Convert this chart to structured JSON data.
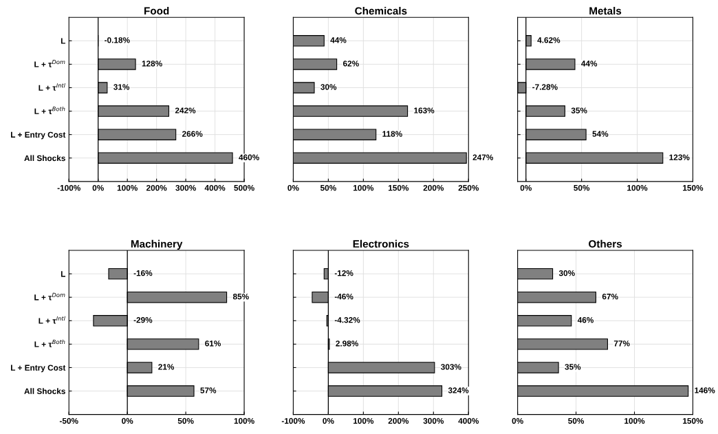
{
  "chart_data": [
    {
      "type": "bar",
      "orientation": "horizontal",
      "title": "Food",
      "categories": [
        "L",
        "L + τ$^{Dom}$",
        "L + τ$^{Intl}$",
        "L + τ$^{Both}$",
        "L + Entry Cost",
        "All Shocks"
      ],
      "values": [
        -0.18,
        128,
        31,
        242,
        266,
        460
      ],
      "value_labels": [
        "-0.18%",
        "128%",
        "31%",
        "242%",
        "266%",
        "460%"
      ],
      "color": "#808080",
      "xlim": [
        -100,
        500
      ],
      "xticks": [
        {
          "value": -100,
          "label": "-100%"
        },
        {
          "value": 0,
          "label": "0%"
        },
        {
          "value": 100,
          "label": "100%"
        },
        {
          "value": 200,
          "label": "200%"
        },
        {
          "value": 300,
          "label": "300%"
        },
        {
          "value": 400,
          "label": "400%"
        },
        {
          "value": 500,
          "label": "500%"
        }
      ],
      "grid": true,
      "ref_lines": [
        {
          "axis": "x",
          "value": 0,
          "color": "#000000"
        }
      ]
    },
    {
      "type": "bar",
      "orientation": "horizontal",
      "title": "Chemicals",
      "categories": [
        null,
        null,
        null,
        null,
        null,
        null
      ],
      "values": [
        44,
        62,
        30,
        163,
        118,
        247
      ],
      "value_labels": [
        "44%",
        "62%",
        "30%",
        "163%",
        "118%",
        "247%"
      ],
      "color": "#808080",
      "xlim": [
        0,
        250
      ],
      "xticks": [
        {
          "value": 0,
          "label": "0%"
        },
        {
          "value": 50,
          "label": "50%"
        },
        {
          "value": 100,
          "label": "100%"
        },
        {
          "value": 150,
          "label": "150%"
        },
        {
          "value": 200,
          "label": "200%"
        },
        {
          "value": 250,
          "label": "250%"
        }
      ],
      "grid": true,
      "tick_labels": "x"
    },
    {
      "type": "bar",
      "orientation": "horizontal",
      "title": "Metals",
      "categories": [
        null,
        null,
        null,
        null,
        null,
        null
      ],
      "values": [
        4.62,
        44,
        -7.28,
        35,
        54,
        123
      ],
      "value_labels": [
        "4.62%",
        "44%",
        "-7.28%",
        "35%",
        "54%",
        "123%"
      ],
      "color": "#808080",
      "xlim": [
        -7.5,
        150
      ],
      "xticks": [
        {
          "value": 0,
          "label": "0%"
        },
        {
          "value": 50,
          "label": "50%"
        },
        {
          "value": 100,
          "label": "100%"
        },
        {
          "value": 150,
          "label": "150%"
        }
      ],
      "grid": true,
      "tick_labels": "x",
      "ref_lines": [
        {
          "axis": "x",
          "value": 0,
          "color": "#000000"
        }
      ]
    },
    {
      "type": "bar",
      "orientation": "horizontal",
      "title": "Machinery",
      "categories": [
        "L",
        "L + τ$^{Dom}$",
        "L + τ$^{Intl}$",
        "L + τ$^{Both}$",
        "L + Entry Cost",
        "All Shocks"
      ],
      "values": [
        -16,
        85,
        -29,
        61,
        21,
        57
      ],
      "value_labels": [
        "-16%",
        "85%",
        "-29%",
        "61%",
        "21%",
        "57%"
      ],
      "color": "#808080",
      "xlim": [
        -50,
        100
      ],
      "xticks": [
        {
          "value": -50,
          "label": "-50%"
        },
        {
          "value": 0,
          "label": "0%"
        },
        {
          "value": 50,
          "label": "50%"
        },
        {
          "value": 100,
          "label": "100%"
        }
      ],
      "grid": true,
      "ref_lines": [
        {
          "axis": "x",
          "value": 0,
          "color": "#000000"
        }
      ]
    },
    {
      "type": "bar",
      "orientation": "horizontal",
      "title": "Electronics",
      "categories": [
        null,
        null,
        null,
        null,
        null,
        null
      ],
      "values": [
        -12,
        -46,
        -4.32,
        2.98,
        303,
        324
      ],
      "value_labels": [
        "-12%",
        "-46%",
        "-4.32%",
        "2.98%",
        "303%",
        "324%"
      ],
      "color": "#808080",
      "xlim": [
        -100,
        400
      ],
      "xticks": [
        {
          "value": -100,
          "label": "-100%"
        },
        {
          "value": 0,
          "label": "0%"
        },
        {
          "value": 100,
          "label": "100%"
        },
        {
          "value": 200,
          "label": "200%"
        },
        {
          "value": 300,
          "label": "300%"
        },
        {
          "value": 400,
          "label": "400%"
        }
      ],
      "grid": true,
      "tick_labels": "x",
      "ref_lines": [
        {
          "axis": "x",
          "value": 0,
          "color": "#000000"
        }
      ]
    },
    {
      "type": "bar",
      "orientation": "horizontal",
      "title": "Others",
      "categories": [
        null,
        null,
        null,
        null,
        null,
        null
      ],
      "values": [
        30,
        67,
        46,
        77,
        35,
        146
      ],
      "value_labels": [
        "30%",
        "67%",
        "46%",
        "77%",
        "35%",
        "146%"
      ],
      "color": "#808080",
      "xlim": [
        0,
        150
      ],
      "xticks": [
        {
          "value": 0,
          "label": "0%"
        },
        {
          "value": 50,
          "label": "50%"
        },
        {
          "value": 100,
          "label": "100%"
        },
        {
          "value": 150,
          "label": "150%"
        }
      ],
      "grid": true,
      "tick_labels": "x"
    }
  ]
}
